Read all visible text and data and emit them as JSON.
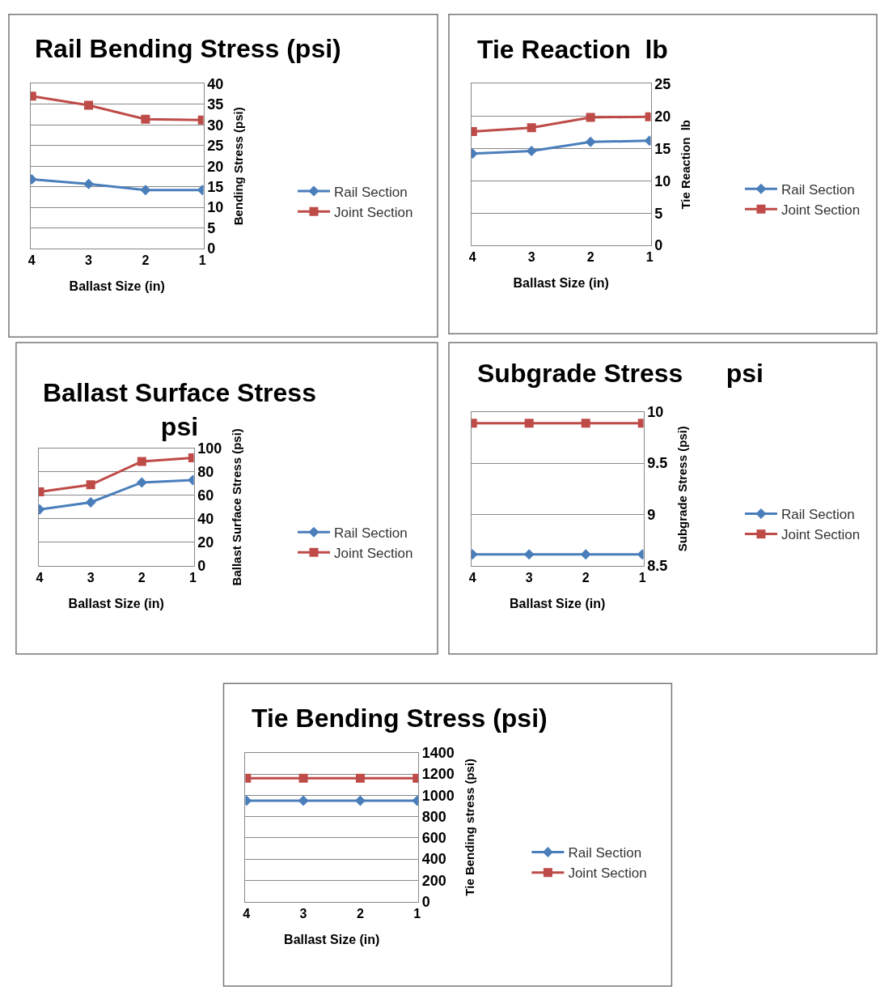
{
  "chart_data": [
    {
      "type": "line",
      "title": "Rail Bending Stress (psi)",
      "xlabel": "Ballast Size (in)",
      "ylabel": "Bending Stress (psi)",
      "categories": [
        "4",
        "3",
        "2",
        "1"
      ],
      "ylim": [
        0,
        40
      ],
      "yticks": [
        0,
        5,
        10,
        15,
        20,
        25,
        30,
        35,
        40
      ],
      "grid": "y",
      "legend": "right",
      "series": [
        {
          "name": "Rail Section",
          "color": "#4a7ebb",
          "marker": "diamond",
          "values": [
            16.8,
            15.7,
            14.2,
            14.2
          ]
        },
        {
          "name": "Joint Section",
          "color": "#be4b48",
          "marker": "square",
          "values": [
            37.0,
            34.8,
            31.4,
            31.2
          ]
        }
      ]
    },
    {
      "type": "line",
      "title": "Tie Reaction  lb",
      "xlabel": "Ballast Size (in)",
      "ylabel": "Tie Reaction  lb",
      "categories": [
        "4",
        "3",
        "2",
        "1"
      ],
      "ylim": [
        0,
        25
      ],
      "yticks": [
        0,
        5,
        10,
        15,
        20,
        25
      ],
      "grid": "y",
      "legend": "right",
      "series": [
        {
          "name": "Rail Section",
          "color": "#4a7ebb",
          "marker": "diamond",
          "values": [
            14.2,
            14.6,
            16.0,
            16.2
          ]
        },
        {
          "name": "Joint Section",
          "color": "#be4b48",
          "marker": "square",
          "values": [
            17.6,
            18.2,
            19.8,
            19.9
          ]
        }
      ]
    },
    {
      "type": "line",
      "title": "Ballast Surface Stress\npsi",
      "xlabel": "Ballast Size (in)",
      "ylabel": "Ballast Surface Stress (psi)",
      "categories": [
        "4",
        "3",
        "2",
        "1"
      ],
      "ylim": [
        0,
        100
      ],
      "yticks": [
        0,
        20,
        40,
        60,
        80,
        100
      ],
      "grid": "y",
      "legend": "right",
      "series": [
        {
          "name": "Rail Section",
          "color": "#4a7ebb",
          "marker": "diamond",
          "values": [
            48,
            54,
            71,
            73
          ]
        },
        {
          "name": "Joint Section",
          "color": "#be4b48",
          "marker": "square",
          "values": [
            63,
            69,
            89,
            92
          ]
        }
      ]
    },
    {
      "type": "line",
      "title": "Subgrade Stress      psi",
      "xlabel": "Ballast Size (in)",
      "ylabel": "Subgrade Stress (psi)",
      "categories": [
        "4",
        "3",
        "2",
        "1"
      ],
      "ylim": [
        8.5,
        10
      ],
      "yticks": [
        8.5,
        9,
        9.5,
        10
      ],
      "grid": "y",
      "legend": "right",
      "series": [
        {
          "name": "Rail Section",
          "color": "#4a7ebb",
          "marker": "diamond",
          "values": [
            8.61,
            8.61,
            8.61,
            8.61
          ]
        },
        {
          "name": "Joint Section",
          "color": "#be4b48",
          "marker": "square",
          "values": [
            9.89,
            9.89,
            9.89,
            9.89
          ]
        }
      ]
    },
    {
      "type": "line",
      "title": "Tie Bending Stress (psi)",
      "xlabel": "Ballast Size (in)",
      "ylabel": "Tie Bending stress (psi)",
      "categories": [
        "4",
        "3",
        "2",
        "1"
      ],
      "ylim": [
        0,
        1400
      ],
      "yticks": [
        0,
        200,
        400,
        600,
        800,
        1000,
        1200,
        1400
      ],
      "grid": "y",
      "legend": "right",
      "series": [
        {
          "name": "Rail Section",
          "color": "#4a7ebb",
          "marker": "diamond",
          "values": [
            950,
            950,
            950,
            950
          ]
        },
        {
          "name": "Joint Section",
          "color": "#be4b48",
          "marker": "square",
          "values": [
            1160,
            1160,
            1160,
            1160
          ]
        }
      ]
    }
  ]
}
